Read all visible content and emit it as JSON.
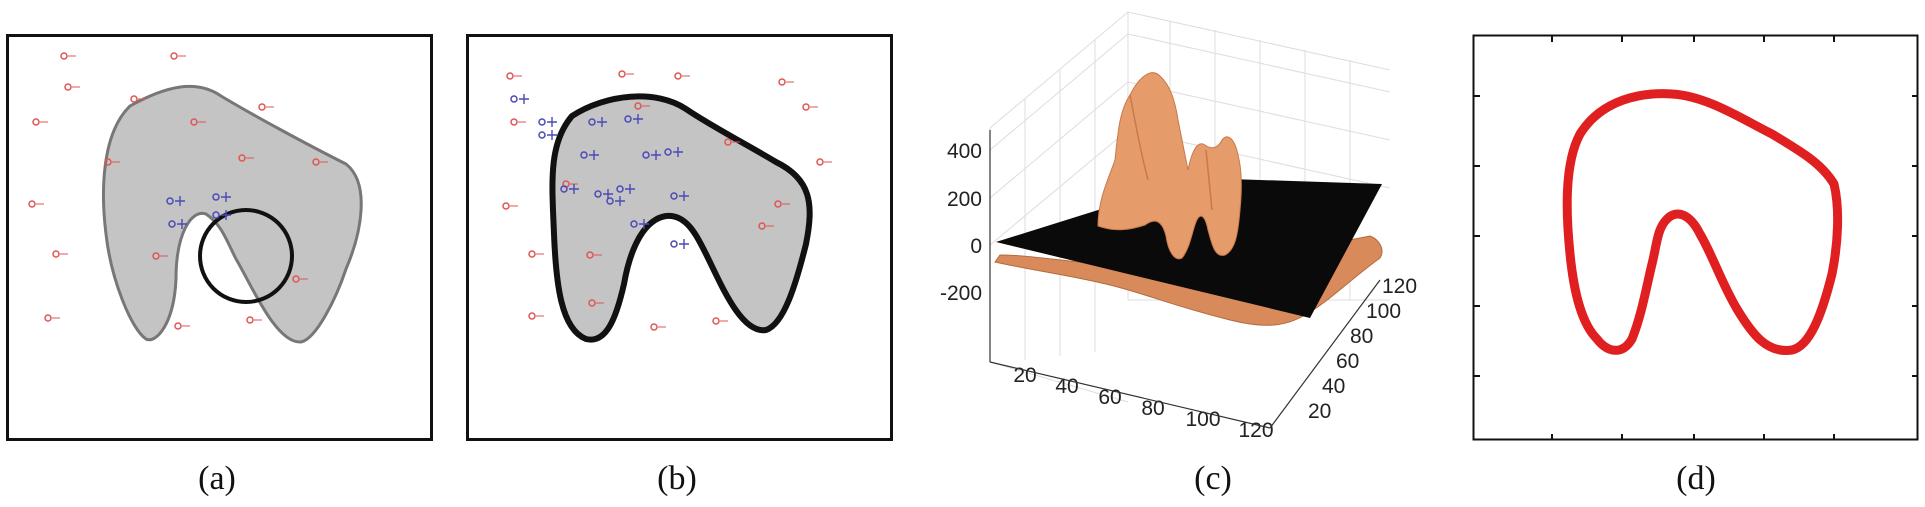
{
  "panels": [
    {
      "id": "a",
      "caption": "(a)"
    },
    {
      "id": "b",
      "caption": "(b)"
    },
    {
      "id": "c",
      "caption": "(c)"
    },
    {
      "id": "d",
      "caption": "(d)"
    }
  ],
  "panel_c": {
    "z_ticks": [
      "400",
      "200",
      "0",
      "-200"
    ],
    "x_ticks": [
      "20",
      "40",
      "60",
      "80",
      "100",
      "120"
    ],
    "y_ticks": [
      "20",
      "40",
      "60",
      "80",
      "100",
      "120"
    ]
  },
  "colors": {
    "outside_marker": "#e05555",
    "inside_marker": "#4a4ab8",
    "region_fill": "#c4c4c4",
    "surface": "#e59b6a",
    "contour": "#e02020"
  }
}
